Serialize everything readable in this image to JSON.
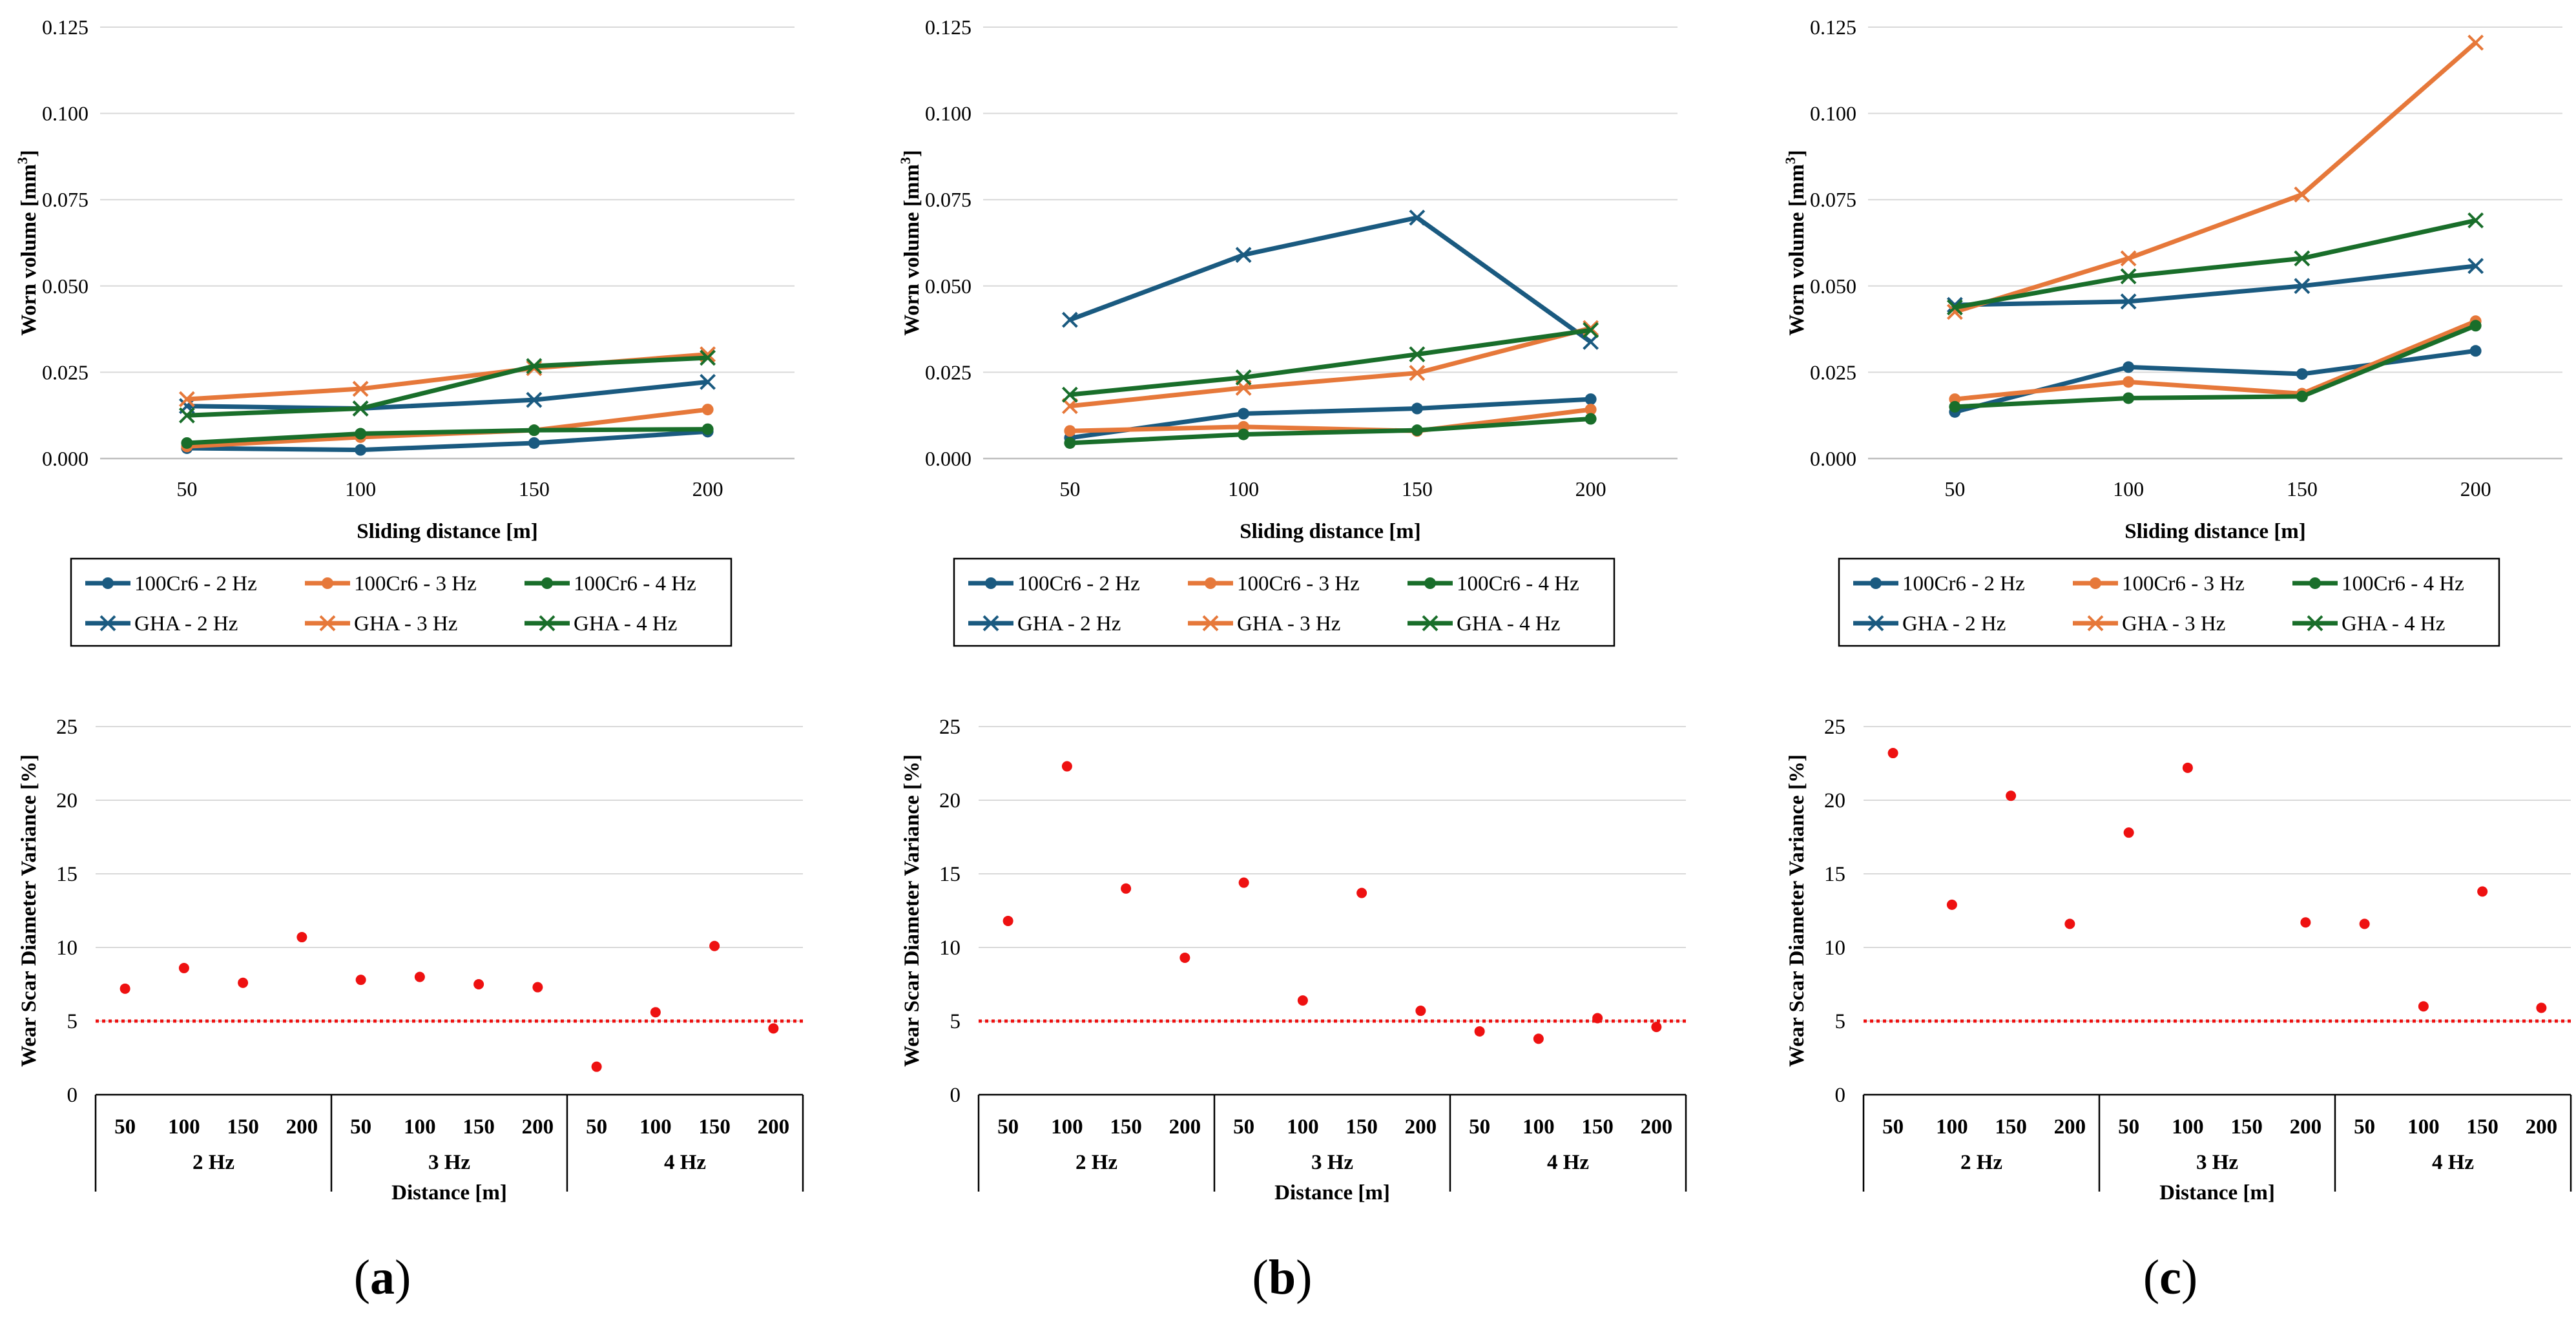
{
  "colors": {
    "s100Cr6_2Hz": "#1a5a80",
    "s100Cr6_3Hz": "#e6783a",
    "s100Cr6_4Hz": "#196e2a",
    "gha_2Hz": "#1a5a80",
    "gha_3Hz": "#e6783a",
    "gha_4Hz": "#196e2a",
    "scatter": "#ee1111",
    "threshold": "#ee1111",
    "gridline": "#d9d9d9",
    "axis": "#000000"
  },
  "panels": [
    {
      "label": "(a)",
      "letter": "a"
    },
    {
      "label": "(b)",
      "letter": "b"
    },
    {
      "label": "(c)",
      "letter": "c"
    }
  ],
  "chart_data": [
    {
      "panel": "a",
      "type": "line",
      "title": "",
      "xlabel": "Sliding distance [m]",
      "ylabel": "Worn volume [mm³]",
      "ylabel_main": "Worn volume [mm",
      "ylabel_sup": "3",
      "ylabel_end": "]",
      "categories": [
        "50",
        "100",
        "150",
        "200"
      ],
      "ylim": [
        0,
        0.125
      ],
      "yticks": [
        "0.000",
        "0.025",
        "0.050",
        "0.075",
        "0.100",
        "0.125"
      ],
      "grid": true,
      "legend_position": "bottom",
      "series": [
        {
          "name": "100Cr6 - 2 Hz",
          "marker": "dot",
          "color_key": "s100Cr6_2Hz",
          "values": [
            0.003,
            0.0025,
            0.0045,
            0.0078
          ]
        },
        {
          "name": "100Cr6 - 3 Hz",
          "marker": "dot",
          "color_key": "s100Cr6_3Hz",
          "values": [
            0.0035,
            0.0062,
            0.0082,
            0.0142
          ]
        },
        {
          "name": "100Cr6 - 4 Hz",
          "marker": "dot",
          "color_key": "s100Cr6_4Hz",
          "values": [
            0.0045,
            0.0072,
            0.0082,
            0.0085
          ]
        },
        {
          "name": "GHA - 2 Hz",
          "marker": "x",
          "color_key": "gha_2Hz",
          "values": [
            0.0152,
            0.0145,
            0.017,
            0.0222
          ]
        },
        {
          "name": "GHA - 3 Hz",
          "marker": "x",
          "color_key": "gha_3Hz",
          "values": [
            0.0172,
            0.0202,
            0.0262,
            0.0302
          ]
        },
        {
          "name": "GHA - 4 Hz",
          "marker": "x",
          "color_key": "gha_4Hz",
          "values": [
            0.0125,
            0.0145,
            0.0268,
            0.0292
          ]
        }
      ]
    },
    {
      "panel": "b",
      "type": "line",
      "title": "",
      "xlabel": "Sliding distance [m]",
      "ylabel": "Worn volume [mm³]",
      "ylabel_main": "Worn volume [mm",
      "ylabel_sup": "3",
      "ylabel_end": "]",
      "categories": [
        "50",
        "100",
        "150",
        "200"
      ],
      "ylim": [
        0,
        0.125
      ],
      "yticks": [
        "0.000",
        "0.025",
        "0.050",
        "0.075",
        "0.100",
        "0.125"
      ],
      "grid": true,
      "legend_position": "bottom",
      "series": [
        {
          "name": "100Cr6 - 2 Hz",
          "marker": "dot",
          "color_key": "s100Cr6_2Hz",
          "values": [
            0.006,
            0.013,
            0.0145,
            0.0172
          ]
        },
        {
          "name": "100Cr6 - 3 Hz",
          "marker": "dot",
          "color_key": "s100Cr6_3Hz",
          "values": [
            0.008,
            0.0092,
            0.008,
            0.0142
          ]
        },
        {
          "name": "100Cr6 - 4 Hz",
          "marker": "dot",
          "color_key": "s100Cr6_4Hz",
          "values": [
            0.0045,
            0.007,
            0.0082,
            0.0115
          ]
        },
        {
          "name": "GHA - 2 Hz",
          "marker": "x",
          "color_key": "gha_2Hz",
          "values": [
            0.0402,
            0.059,
            0.0698,
            0.0338
          ]
        },
        {
          "name": "GHA - 3 Hz",
          "marker": "x",
          "color_key": "gha_3Hz",
          "values": [
            0.0152,
            0.0205,
            0.0248,
            0.0378
          ]
        },
        {
          "name": "GHA - 4 Hz",
          "marker": "x",
          "color_key": "gha_4Hz",
          "values": [
            0.0185,
            0.0235,
            0.0302,
            0.0372
          ]
        }
      ]
    },
    {
      "panel": "c",
      "type": "line",
      "title": "",
      "xlabel": "Sliding distance [m]",
      "ylabel": "Worn volume [mm³]",
      "ylabel_main": "Worn volume [mm",
      "ylabel_sup": "3",
      "ylabel_end": "]",
      "categories": [
        "50",
        "100",
        "150",
        "200"
      ],
      "ylim": [
        0,
        0.125
      ],
      "yticks": [
        "0.000",
        "0.025",
        "0.050",
        "0.075",
        "0.100",
        "0.125"
      ],
      "grid": true,
      "legend_position": "bottom",
      "series": [
        {
          "name": "100Cr6 - 2 Hz",
          "marker": "dot",
          "color_key": "s100Cr6_2Hz",
          "values": [
            0.0135,
            0.0265,
            0.0245,
            0.0312
          ]
        },
        {
          "name": "100Cr6 - 3 Hz",
          "marker": "dot",
          "color_key": "s100Cr6_3Hz",
          "values": [
            0.0172,
            0.0222,
            0.0188,
            0.0398
          ]
        },
        {
          "name": "100Cr6 - 4 Hz",
          "marker": "dot",
          "color_key": "s100Cr6_4Hz",
          "values": [
            0.015,
            0.0175,
            0.018,
            0.0385
          ]
        },
        {
          "name": "GHA - 2 Hz",
          "marker": "x",
          "color_key": "gha_2Hz",
          "values": [
            0.0445,
            0.0455,
            0.05,
            0.0558
          ]
        },
        {
          "name": "GHA - 3 Hz",
          "marker": "x",
          "color_key": "gha_3Hz",
          "values": [
            0.0425,
            0.058,
            0.0765,
            0.1205
          ]
        },
        {
          "name": "GHA - 4 Hz",
          "marker": "x",
          "color_key": "gha_4Hz",
          "values": [
            0.0438,
            0.0528,
            0.058,
            0.069
          ]
        }
      ]
    },
    {
      "panel": "a",
      "type": "scatter",
      "title": "",
      "xlabel": "Distance [m]",
      "ylabel": "Wear Scar Diameter Variance [%]",
      "ylim": [
        0,
        25
      ],
      "yticks": [
        "0",
        "5",
        "10",
        "15",
        "20",
        "25"
      ],
      "grid": true,
      "threshold": 5,
      "groups": [
        "2 Hz",
        "3 Hz",
        "4 Hz"
      ],
      "categories": [
        "50",
        "100",
        "150",
        "200"
      ],
      "values": [
        7.2,
        8.6,
        7.6,
        10.7,
        7.8,
        8.0,
        7.5,
        7.3,
        1.9,
        5.6,
        10.1,
        4.5
      ]
    },
    {
      "panel": "b",
      "type": "scatter",
      "title": "",
      "xlabel": "Distance [m]",
      "ylabel": "Wear Scar Diameter Variance [%]",
      "ylim": [
        0,
        25
      ],
      "yticks": [
        "0",
        "5",
        "10",
        "15",
        "20",
        "25"
      ],
      "grid": true,
      "threshold": 5,
      "groups": [
        "2 Hz",
        "3 Hz",
        "4 Hz"
      ],
      "categories": [
        "50",
        "100",
        "150",
        "200"
      ],
      "values": [
        11.8,
        22.3,
        14.0,
        9.3,
        14.4,
        6.4,
        13.7,
        5.7,
        4.3,
        3.8,
        5.2,
        4.6
      ]
    },
    {
      "panel": "c",
      "type": "scatter",
      "title": "",
      "xlabel": "Distance [m]",
      "ylabel": "Wear Scar Diameter Variance [%]",
      "ylim": [
        0,
        25
      ],
      "yticks": [
        "0",
        "5",
        "10",
        "15",
        "20",
        "25"
      ],
      "grid": true,
      "threshold": 5,
      "groups": [
        "2 Hz",
        "3 Hz",
        "4 Hz"
      ],
      "categories": [
        "50",
        "100",
        "150",
        "200"
      ],
      "values": [
        23.2,
        12.9,
        20.3,
        11.6,
        17.8,
        22.2,
        null,
        11.7,
        11.6,
        6.0,
        13.8,
        5.9
      ]
    }
  ]
}
